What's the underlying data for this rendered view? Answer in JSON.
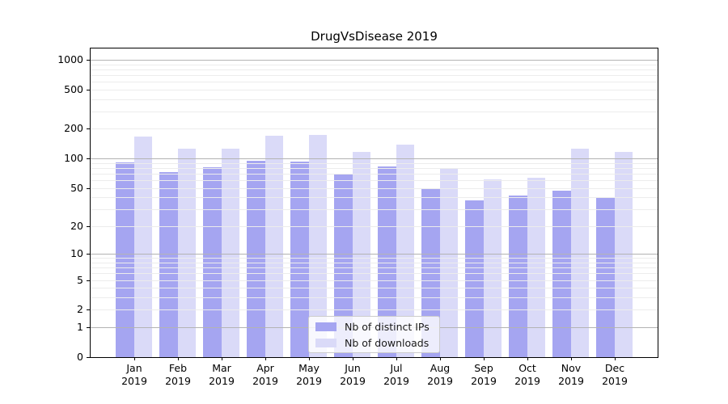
{
  "chart_data": {
    "type": "bar",
    "title": "DrugVsDisease 2019",
    "categories": [
      "Jan",
      "Feb",
      "Mar",
      "Apr",
      "May",
      "Jun",
      "Jul",
      "Aug",
      "Sep",
      "Oct",
      "Nov",
      "Dec"
    ],
    "x_sub_label": "2019",
    "series": [
      {
        "name": "Nb of distinct IPs",
        "color": "#a5a5f1",
        "values": [
          91,
          72,
          82,
          94,
          93,
          70,
          83,
          49,
          37,
          42,
          47,
          39
        ]
      },
      {
        "name": "Nb of downloads",
        "color": "#dadaf8",
        "values": [
          166,
          127,
          125,
          171,
          174,
          116,
          139,
          80,
          61,
          63,
          125,
          116
        ]
      }
    ],
    "y_axis": {
      "scale": "log1p",
      "tick_values": [
        0,
        1,
        2,
        5,
        10,
        20,
        50,
        100,
        200,
        500,
        1000
      ],
      "ylim": [
        0,
        1300
      ]
    },
    "grid": {
      "show": true,
      "major_color": "#b3b3b3",
      "minor_color": "#ececec"
    },
    "legend": {
      "position": "lower center",
      "entries": [
        "Nb of distinct IPs",
        "Nb of downloads"
      ]
    },
    "axis_color": "#000000"
  }
}
